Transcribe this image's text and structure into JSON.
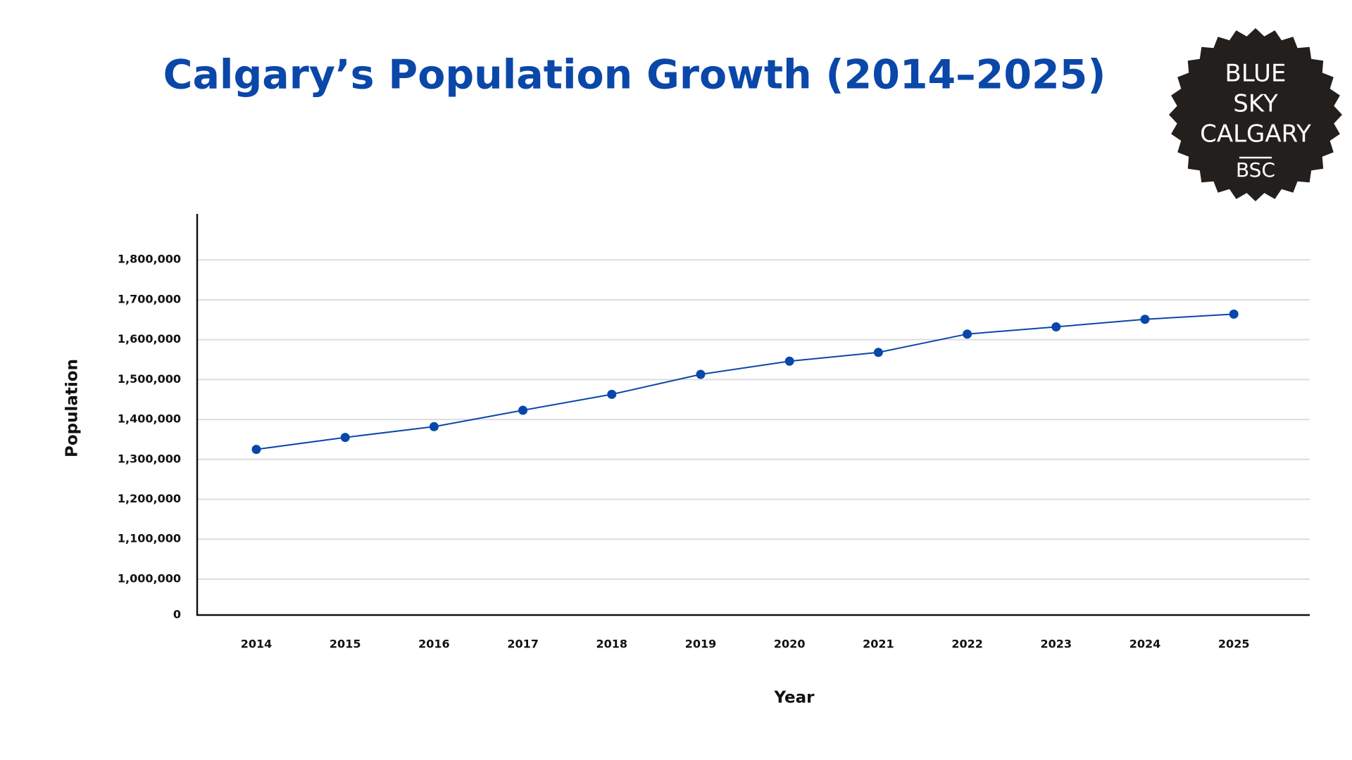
{
  "chart_data": {
    "type": "line",
    "title": "Calgary’s Population Growth (2014–2025)",
    "x_label": "Year",
    "y_label": "Population",
    "categories": [
      "2014",
      "2015",
      "2016",
      "2017",
      "2018",
      "2019",
      "2020",
      "2021",
      "2022",
      "2023",
      "2024",
      "2025"
    ],
    "series": [
      {
        "name": "Population",
        "color": "#0a47a9",
        "values": [
          1325000,
          1355000,
          1382000,
          1423000,
          1463000,
          1513000,
          1546000,
          1568000,
          1614000,
          1632000,
          1651000,
          1664000
        ]
      }
    ],
    "ylim": [
      910000,
      1915000
    ],
    "yticks": [
      0,
      {
        "value": 1000000,
        "label": "1,000,000"
      },
      {
        "value": 1100000,
        "label": "1,100,000"
      },
      {
        "value": 1200000,
        "label": "1,200,000"
      },
      {
        "value": 1300000,
        "label": "1,300,000"
      },
      {
        "value": 1400000,
        "label": "1,400,000"
      },
      {
        "value": 1500000,
        "label": "1,500,000"
      },
      {
        "value": 1600000,
        "label": "1,600,000"
      },
      {
        "value": 1700000,
        "label": "1,700,000"
      },
      {
        "value": 1800000,
        "label": "1,800,000"
      }
    ],
    "grid": true
  },
  "logo": {
    "lines": [
      "BLUE",
      "SKY",
      "CALGARY"
    ],
    "mark": "BSC"
  }
}
